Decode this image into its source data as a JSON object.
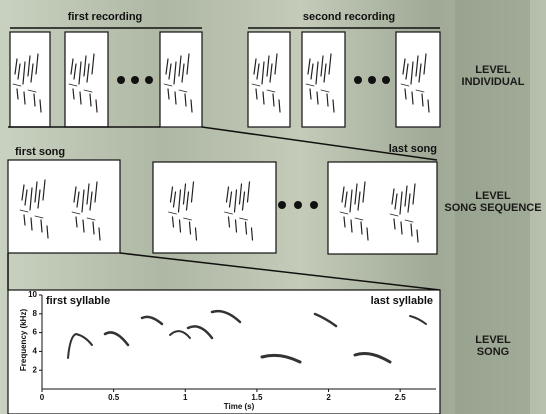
{
  "header": {
    "first_recording": "first recording",
    "second_recording": "second recording"
  },
  "sequence": {
    "first_song": "first song",
    "last_song": "last song"
  },
  "levels": [
    [
      "LEVEL",
      "INDIVIDUAL"
    ],
    [
      "LEVEL",
      "SONG SEQUENCE"
    ],
    [
      "LEVEL",
      "SONG"
    ]
  ],
  "spectrogram": {
    "first_syllable": "first syllable",
    "last_syllable": "last syllable",
    "xlabel": "Time (s)",
    "ylabel": "Frequency (kHz)",
    "xlim": [
      0,
      2.75
    ],
    "ylim": [
      0,
      10
    ],
    "xticks": [
      0,
      0.5,
      1,
      1.5,
      2,
      2.5
    ],
    "yticks": [
      2,
      4,
      6,
      8,
      10
    ]
  }
}
